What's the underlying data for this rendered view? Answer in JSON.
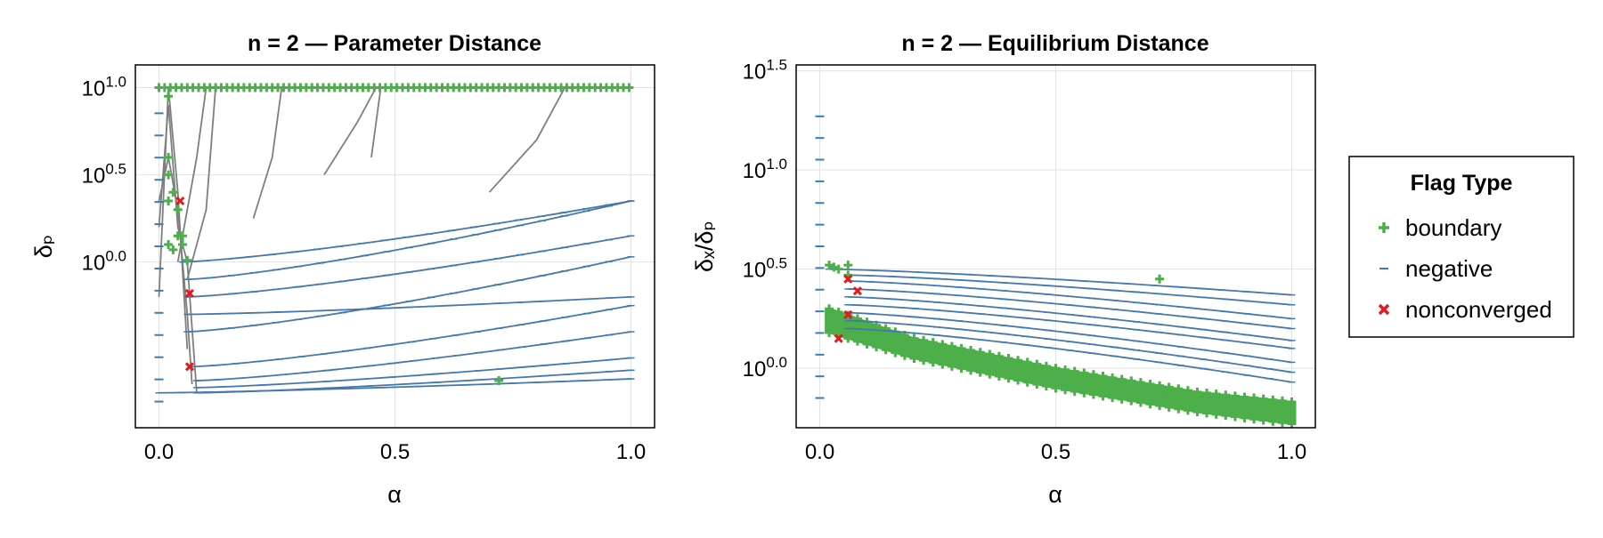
{
  "chart_data": [
    {
      "type": "scatter",
      "title": "n = 2 — Parameter Distance",
      "xlabel": "α",
      "ylabel": "δₚ",
      "xlim": [
        -0.05,
        1.05
      ],
      "ylim_log10": [
        -0.95,
        1.13
      ],
      "yscale": "log10",
      "grid": true,
      "xticks": [
        {
          "value": 0,
          "label": "0.0"
        },
        {
          "value": 0.5,
          "label": "0.5"
        },
        {
          "value": 1,
          "label": "1.0"
        }
      ],
      "yticks": [
        {
          "value": 0,
          "base": "10",
          "exp": "0.0"
        },
        {
          "value": 0.5,
          "base": "10",
          "exp": "0.5"
        },
        {
          "value": 1,
          "base": "10",
          "exp": "1.0"
        }
      ],
      "boundary_top_log10": 1.0,
      "gray_paths": [
        [
          [
            0,
            0.2
          ],
          [
            0.02,
            0.9
          ],
          [
            0.04,
            0.2
          ],
          [
            0.06,
            0.0
          ],
          [
            0.08,
            -0.75
          ]
        ],
        [
          [
            0,
            0.35
          ],
          [
            0.02,
            0.6
          ],
          [
            0.04,
            0.3
          ],
          [
            0.06,
            -0.3
          ],
          [
            0.07,
            -0.7
          ]
        ],
        [
          [
            0,
            -0.2
          ],
          [
            0.02,
            1.0
          ],
          [
            0.04,
            0.4
          ],
          [
            0.06,
            -0.5
          ]
        ],
        [
          [
            0.04,
            0.0
          ],
          [
            0.06,
            0.3
          ],
          [
            0.08,
            0.6
          ],
          [
            0.1,
            1.0
          ]
        ],
        [
          [
            0.06,
            -0.1
          ],
          [
            0.1,
            0.3
          ],
          [
            0.12,
            1.0
          ]
        ],
        [
          [
            0.2,
            0.25
          ],
          [
            0.24,
            0.6
          ],
          [
            0.26,
            1.0
          ]
        ],
        [
          [
            0.35,
            0.5
          ],
          [
            0.42,
            0.8
          ],
          [
            0.46,
            1.0
          ]
        ],
        [
          [
            0.45,
            0.6
          ],
          [
            0.47,
            1.0
          ]
        ],
        [
          [
            0.7,
            0.4
          ],
          [
            0.8,
            0.7
          ],
          [
            0.86,
            1.0
          ]
        ]
      ],
      "blue_series": [
        {
          "start": [
            0.0,
            -0.75
          ],
          "end": [
            1.0,
            -0.67
          ]
        },
        {
          "start": [
            0.08,
            -0.75
          ],
          "end": [
            1.0,
            -0.62
          ]
        },
        {
          "start": [
            0.08,
            -0.72
          ],
          "end": [
            1.0,
            -0.55
          ]
        },
        {
          "start": [
            0.08,
            -0.68
          ],
          "end": [
            1.0,
            -0.4
          ]
        },
        {
          "start": [
            0.07,
            -0.6
          ],
          "end": [
            1.0,
            -0.25
          ]
        },
        {
          "start": [
            0.06,
            -0.4
          ],
          "end": [
            1.0,
            0.03
          ]
        },
        {
          "start": [
            0.06,
            -0.2
          ],
          "end": [
            1.0,
            0.15
          ]
        },
        {
          "start": [
            0.06,
            -0.1
          ],
          "end": [
            1.0,
            0.35
          ]
        },
        {
          "start": [
            0.05,
            0.0
          ],
          "end": [
            1.0,
            0.35
          ]
        },
        {
          "start": [
            0.06,
            -0.3
          ],
          "end": [
            1.0,
            -0.2
          ]
        }
      ],
      "series_markers": {
        "boundary": [
          [
            0.02,
            0.95
          ],
          [
            0.02,
            0.6
          ],
          [
            0.02,
            0.5
          ],
          [
            0.02,
            0.35
          ],
          [
            0.03,
            0.4
          ],
          [
            0.04,
            0.3
          ],
          [
            0.04,
            0.15
          ],
          [
            0.05,
            0.1
          ],
          [
            0.05,
            0.15
          ],
          [
            0.06,
            0.01
          ],
          [
            0.02,
            0.1
          ],
          [
            0.03,
            0.07
          ],
          [
            0.72,
            -0.68
          ]
        ],
        "nonconverged": [
          [
            0.045,
            0.35
          ],
          [
            0.065,
            -0.18
          ],
          [
            0.065,
            -0.6
          ]
        ]
      }
    },
    {
      "type": "scatter",
      "title": "n = 2 — Equilibrium Distance",
      "xlabel": "α",
      "ylabel": "δₓ/δₚ",
      "xlim": [
        -0.05,
        1.05
      ],
      "ylim_log10": [
        -0.3,
        1.53
      ],
      "yscale": "log10",
      "grid": true,
      "xticks": [
        {
          "value": 0,
          "label": "0.0"
        },
        {
          "value": 0.5,
          "label": "0.5"
        },
        {
          "value": 1,
          "label": "1.0"
        }
      ],
      "yticks": [
        {
          "value": 0,
          "base": "10",
          "exp": "0.0"
        },
        {
          "value": 0.5,
          "base": "10",
          "exp": "0.5"
        },
        {
          "value": 1,
          "base": "10",
          "exp": "1.0"
        },
        {
          "value": 1.5,
          "base": "10",
          "exp": "1.5"
        }
      ],
      "green_band_top": [
        [
          0.02,
          0.3
        ],
        [
          0.2,
          0.15
        ],
        [
          0.5,
          0.0
        ],
        [
          0.8,
          -0.12
        ],
        [
          1.0,
          -0.17
        ]
      ],
      "green_band_bottom": [
        [
          0.02,
          0.18
        ],
        [
          0.2,
          0.05
        ],
        [
          0.5,
          -0.1
        ],
        [
          0.8,
          -0.22
        ],
        [
          1.0,
          -0.28
        ]
      ],
      "blue_series": [
        {
          "start": [
            0.02,
            0.5
          ],
          "end": [
            1.0,
            0.37
          ]
        },
        {
          "start": [
            0.06,
            0.47
          ],
          "end": [
            1.0,
            0.32
          ]
        },
        {
          "start": [
            0.06,
            0.44
          ],
          "end": [
            1.0,
            0.25
          ]
        },
        {
          "start": [
            0.06,
            0.4
          ],
          "end": [
            1.0,
            0.2
          ]
        },
        {
          "start": [
            0.06,
            0.36
          ],
          "end": [
            1.0,
            0.14
          ]
        },
        {
          "start": [
            0.06,
            0.32
          ],
          "end": [
            1.0,
            0.1
          ]
        },
        {
          "start": [
            0.06,
            0.28
          ],
          "end": [
            1.0,
            0.03
          ]
        },
        {
          "start": [
            0.06,
            0.24
          ],
          "end": [
            1.0,
            -0.02
          ]
        },
        {
          "start": [
            0.06,
            0.2
          ],
          "end": [
            1.0,
            -0.07
          ]
        }
      ],
      "series_markers": {
        "boundary": [
          [
            0.02,
            0.52
          ],
          [
            0.03,
            0.51
          ],
          [
            0.04,
            0.5
          ],
          [
            0.06,
            0.52
          ],
          [
            0.06,
            0.47
          ],
          [
            0.72,
            0.45
          ]
        ],
        "nonconverged": [
          [
            0.04,
            0.15
          ],
          [
            0.06,
            0.45
          ],
          [
            0.06,
            0.27
          ],
          [
            0.08,
            0.39
          ]
        ]
      }
    }
  ],
  "legend": {
    "title": "Flag Type",
    "placement": "right",
    "items": [
      {
        "label": "boundary",
        "color": "#4daf4a",
        "marker": "plus"
      },
      {
        "label": "negative",
        "color": "#377eb8",
        "marker": "hline"
      },
      {
        "label": "nonconverged",
        "color": "#e41a1c",
        "marker": "x"
      }
    ]
  },
  "colors": {
    "boundary": "#4daf4a",
    "negative": "#377eb8",
    "nonconverged": "#e41a1c",
    "path": "#7f7f7f",
    "series_line": "#4a76a8",
    "grid": "#e3e3e3"
  }
}
